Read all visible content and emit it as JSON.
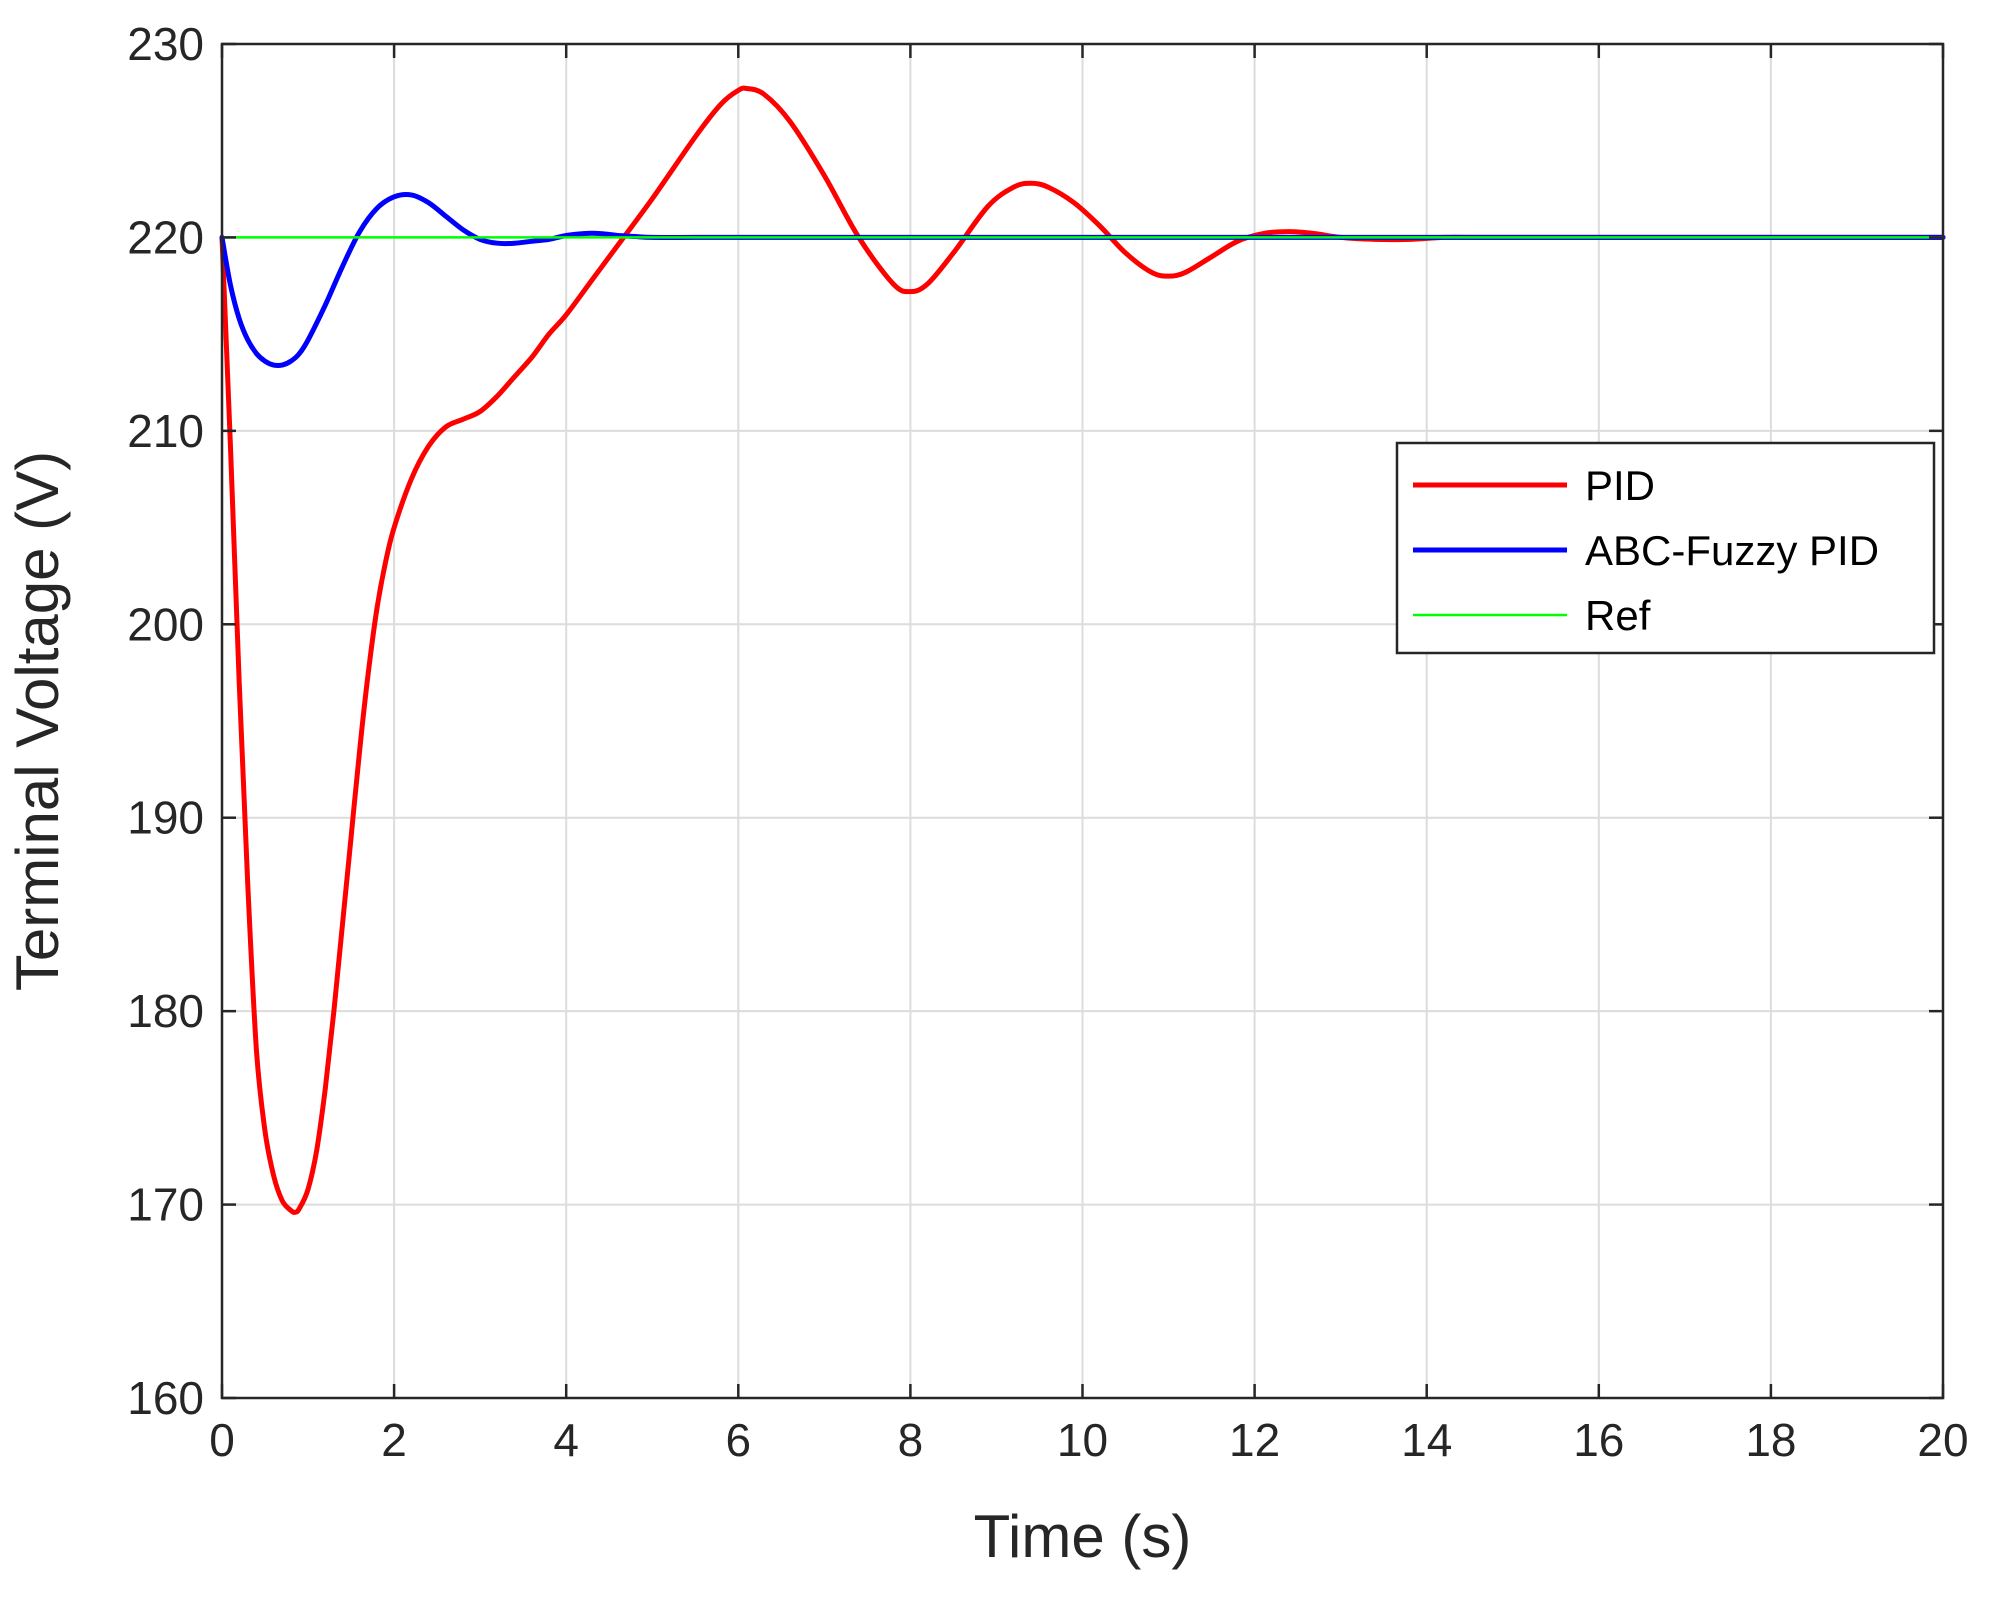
{
  "chart_data": {
    "type": "line",
    "title": "",
    "xlabel": "Time (s)",
    "ylabel": "Terminal Voltage (V)",
    "xlim": [
      0,
      20
    ],
    "ylim": [
      160,
      230
    ],
    "xticks": [
      0,
      2,
      4,
      6,
      8,
      10,
      12,
      14,
      16,
      18,
      20
    ],
    "yticks": [
      160,
      170,
      180,
      190,
      200,
      210,
      220,
      230
    ],
    "grid": true,
    "legend_position": "right",
    "series": [
      {
        "name": "PID",
        "color": "#ff0000",
        "x": [
          0,
          0.1,
          0.2,
          0.3,
          0.4,
          0.5,
          0.6,
          0.7,
          0.8,
          0.85,
          0.9,
          1.0,
          1.1,
          1.2,
          1.3,
          1.4,
          1.5,
          1.6,
          1.7,
          1.8,
          1.9,
          2.0,
          2.2,
          2.4,
          2.6,
          2.8,
          3.0,
          3.2,
          3.4,
          3.6,
          3.8,
          4.0,
          4.3,
          4.6,
          5.0,
          5.5,
          5.8,
          6.0,
          6.1,
          6.3,
          6.6,
          7.0,
          7.4,
          7.8,
          8.0,
          8.2,
          8.5,
          8.9,
          9.2,
          9.4,
          9.6,
          9.9,
          10.2,
          10.5,
          10.8,
          11.0,
          11.2,
          11.5,
          11.8,
          12.1,
          12.4,
          12.7,
          13.0,
          13.4,
          13.8,
          14.2,
          14.6,
          15.0,
          16.0,
          17.0,
          18.0,
          19.0,
          20.0
        ],
        "y": [
          220,
          209,
          197,
          186.5,
          178,
          173.8,
          171.5,
          170.2,
          169.7,
          169.6,
          169.8,
          170.8,
          172.8,
          176,
          180,
          184.5,
          189,
          193.5,
          197.5,
          200.8,
          203.2,
          205,
          207.5,
          209.2,
          210.2,
          210.6,
          211,
          211.8,
          212.8,
          213.8,
          215,
          216,
          217.8,
          219.6,
          222,
          225.2,
          226.9,
          227.6,
          227.7,
          227.4,
          226,
          223.2,
          220,
          217.6,
          217.2,
          217.6,
          219.2,
          221.6,
          222.6,
          222.8,
          222.6,
          221.8,
          220.6,
          219.2,
          218.2,
          218,
          218.2,
          219,
          219.8,
          220.2,
          220.3,
          220.2,
          220,
          219.9,
          219.9,
          220,
          220,
          220,
          220,
          220,
          220,
          220,
          220
        ]
      },
      {
        "name": "ABC-Fuzzy PID",
        "color": "#0000ff",
        "x": [
          0,
          0.1,
          0.2,
          0.3,
          0.4,
          0.5,
          0.6,
          0.7,
          0.8,
          0.9,
          1.0,
          1.2,
          1.4,
          1.6,
          1.8,
          2.0,
          2.2,
          2.4,
          2.6,
          2.8,
          3.0,
          3.2,
          3.4,
          3.6,
          3.8,
          4.0,
          4.2,
          4.4,
          4.6,
          4.8,
          5.0,
          5.5,
          6.0,
          7.0,
          8.0,
          9.0,
          10.0,
          12.0,
          14.0,
          16.0,
          18.0,
          20.0
        ],
        "y": [
          220,
          217.5,
          215.8,
          214.7,
          214.0,
          213.6,
          213.4,
          213.4,
          213.6,
          214.0,
          214.7,
          216.5,
          218.5,
          220.3,
          221.5,
          222.1,
          222.2,
          221.8,
          221.1,
          220.4,
          219.9,
          219.7,
          219.7,
          219.8,
          219.9,
          220.1,
          220.2,
          220.2,
          220.1,
          220.05,
          220,
          220,
          220,
          220,
          220,
          220,
          220,
          220,
          220,
          220,
          220,
          220
        ]
      },
      {
        "name": "Ref",
        "color": "#00ff00",
        "x": [
          0,
          20
        ],
        "y": [
          220,
          220
        ]
      }
    ]
  }
}
